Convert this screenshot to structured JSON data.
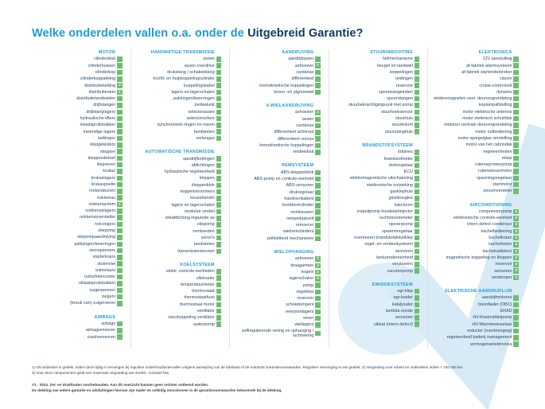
{
  "title": {
    "prefix": "Welke onderdelen vallen o.a. onder de ",
    "highlight": "Uitgebreid Garantie?"
  },
  "colors": {
    "accent_blue": "#1b9cd8",
    "dark_navy": "#14365f",
    "item_text": "#2a4a6b",
    "badge_green": "#6ebe71",
    "watermark_blue": "#d9ecf8"
  },
  "icons": {
    "watermark": "autotrust-checkmark-watermark",
    "badge": "coverage-badge"
  },
  "columns": [
    {
      "sections": [
        {
          "title": "MOTOR",
          "items": [
            {
              "t": "cilinderblok"
            },
            {
              "t": "cilinderbussen"
            },
            {
              "t": "cilinderkop"
            },
            {
              "t": "cilinderkoppakking"
            },
            {
              "t": "distributieketting",
              "b": "3"
            },
            {
              "t": "distributieriem",
              "b": "1"
            },
            {
              "t": "distributietandwielen"
            },
            {
              "t": "drijfstangen"
            },
            {
              "t": "drijfstanglagers"
            },
            {
              "t": "hydraulische lifters"
            },
            {
              "t": "inlaatspruitstukken"
            },
            {
              "t": "inwendige lagers"
            },
            {
              "t": "kettingen"
            },
            {
              "t": "klepgeleiders"
            },
            {
              "t": "kleppen"
            },
            {
              "t": "kleppendeksel"
            },
            {
              "t": "klepveren"
            },
            {
              "t": "krukas"
            },
            {
              "t": "krukaslagers"
            },
            {
              "t": "krukaspoelie"
            },
            {
              "t": "motorsteunen"
            },
            {
              "t": "nokkenas"
            },
            {
              "t": "nokkenasriem",
              "b": "1"
            },
            {
              "t": "nokkenaslagers"
            },
            {
              "t": "nokkenasversteller"
            },
            {
              "t": "nokvolgers"
            },
            {
              "t": "oliepomp"
            },
            {
              "t": "oliepompaandrijving"
            },
            {
              "t": "pakkingen/keerringen"
            },
            {
              "t": "riemspanners"
            },
            {
              "t": "starterkrans"
            },
            {
              "t": "stoterwiel"
            },
            {
              "t": "tuimelaars"
            },
            {
              "t": "turbo/intercooler"
            },
            {
              "t": "uitlaatspruitstukken"
            },
            {
              "t": "zuigerpennen"
            },
            {
              "t": "zuigers"
            },
            {
              "t": "(breuk van) zuigerveren"
            }
          ]
        },
        {
          "title": "AIRBAGS",
          "items": [
            {
              "t": "airbags"
            },
            {
              "t": "airbagsensoren"
            },
            {
              "t": "crashsensoren"
            }
          ]
        }
      ]
    },
    {
      "sections": [
        {
          "title": "HANDMATIGE TRANSMISSIE",
          "items": [
            {
              "t": "assen"
            },
            {
              "t": "assen overdrive"
            },
            {
              "t": "drukstang / schakelstang"
            },
            {
              "t": "hoofd- en hulpkoppelingscilinder"
            },
            {
              "t": "koppelingskabel"
            },
            {
              "t": "lagers en lagerschalen"
            },
            {
              "t": "pakkingen/keerringen"
            },
            {
              "t": "pedaalunit"
            },
            {
              "t": "selectorassen"
            },
            {
              "t": "selectorvorken"
            },
            {
              "t": "synchromesh ringen en naven"
            },
            {
              "t": "tandwielen"
            },
            {
              "t": "verlengas"
            }
          ]
        },
        {
          "title": "AUTOMATISCHE TRANSMISSIE",
          "items": [
            {
              "t": "aandrijfkettingen"
            },
            {
              "t": "afdichtingen"
            },
            {
              "t": "hydraulische regeleenheid"
            },
            {
              "t": "kleppen"
            },
            {
              "t": "kleppenblok"
            },
            {
              "t": "koppelomvormers"
            },
            {
              "t": "keuzehendel"
            },
            {
              "t": "lagers en lagerschalen"
            },
            {
              "t": "modulair ventiel"
            },
            {
              "t": "olieafdichting ingaande as"
            },
            {
              "t": "oliepomp"
            },
            {
              "t": "rembanden"
            },
            {
              "t": "servo's"
            },
            {
              "t": "tandwielen"
            },
            {
              "t": "transmissiesteunen"
            }
          ]
        },
        {
          "title": "KOELSYSTEEM",
          "items": [
            {
              "t": "elektr. controle-eenheden"
            },
            {
              "t": "oliekoeler"
            },
            {
              "t": "temperatuurmeter"
            },
            {
              "t": "thermostaat"
            },
            {
              "t": "thermostaathuis"
            },
            {
              "t": "thermostaat motor"
            },
            {
              "t": "ventilator"
            },
            {
              "t": "viscokoppeling ventilator"
            },
            {
              "t": "waterpomp"
            }
          ]
        }
      ]
    },
    {
      "sections": [
        {
          "title": "AANDRIJVING",
          "items": [
            {
              "t": "aandrijfassen"
            },
            {
              "t": "ashoezen",
              "b": "2"
            },
            {
              "t": "cardanas"
            },
            {
              "t": "differentieel"
            },
            {
              "t": "homokinetische koppelingen"
            },
            {
              "t": "kroon- en pignonwiel"
            }
          ]
        },
        {
          "title": "4-WIELAANDRIJVING",
          "items": [
            {
              "t": "ashoezen",
              "b": "2"
            },
            {
              "t": "assen"
            },
            {
              "t": "cardanas"
            },
            {
              "t": "differentieel achteras"
            },
            {
              "t": "differentieel vooras"
            },
            {
              "t": "homokinetische koppelingen"
            },
            {
              "t": "verdeelbak"
            }
          ]
        },
        {
          "title": "REMSYSTEEM",
          "items": [
            {
              "t": "ABS-kleppenblok"
            },
            {
              "t": "ABS-pomp en controle-eenheid"
            },
            {
              "t": "ABS-sensoren"
            },
            {
              "t": "drukregelaar"
            },
            {
              "t": "handremkabels"
            },
            {
              "t": "hoofdremcilinder"
            },
            {
              "t": "remklauwen"
            },
            {
              "t": "rempedaalunit"
            },
            {
              "t": "remservo"
            },
            {
              "t": "wielremcilinders"
            },
            {
              "t": "zelfstellend mechanisme"
            }
          ]
        },
        {
          "title": "WIELOPHANGING",
          "items": [
            {
              "t": "ashoezen",
              "b": "2"
            },
            {
              "t": "draagarmen",
              "b": "3"
            },
            {
              "t": "kogels",
              "b": "2"
            },
            {
              "t": "lagerschalen",
              "b": "3"
            },
            {
              "t": "pomp"
            },
            {
              "t": "regelklep"
            },
            {
              "t": "reservoir"
            },
            {
              "t": "schokdempers"
            },
            {
              "t": "veerpootlagers"
            },
            {
              "t": "veren"
            },
            {
              "t": "wiellagers"
            },
            {
              "t": "zelfregulerende vering en ophanging / luchtvering"
            }
          ]
        }
      ]
    },
    {
      "sections": [
        {
          "title": "STUURINRICHTING",
          "items": [
            {
              "t": "hefmechanisme"
            },
            {
              "t": "heugel en tandwiel"
            },
            {
              "t": "koppelingen"
            },
            {
              "t": "leidingen"
            },
            {
              "t": "reservoir"
            },
            {
              "t": "spoorstangeinden"
            },
            {
              "t": "spoorstangen"
            },
            {
              "t": "stuurbekrachtigingsunit met pomp"
            },
            {
              "t": "stuurhoeksensor"
            },
            {
              "t": "stuurhuis"
            },
            {
              "t": "stuurkolom"
            },
            {
              "t": "stuurstanghuis"
            }
          ]
        },
        {
          "title": "BRANDSTOFSYSTEEM",
          "items": [
            {
              "t": "bobines"
            },
            {
              "t": "brandstofmeter"
            },
            {
              "t": "drukregelaar"
            },
            {
              "t": "ECU"
            },
            {
              "t": "elektromagnetische uitschakeling"
            },
            {
              "t": "elektronische ontsteking"
            },
            {
              "t": "gasklephuis"
            },
            {
              "t": "gloeibougies"
            },
            {
              "t": "injectoren"
            },
            {
              "t": "inspuitpomp koudstartinjector"
            },
            {
              "t": "luchtstroommeter"
            },
            {
              "t": "opvoerpomp"
            },
            {
              "t": "opwarmregelaar"
            },
            {
              "t": "overtoeren brandstofafsluitklep"
            },
            {
              "t": "regel- en verdeelsysteem"
            },
            {
              "t": "sensoren"
            },
            {
              "t": "tankzendereenheid"
            },
            {
              "t": "verstuivers"
            },
            {
              "t": "vacuümpomp"
            }
          ]
        },
        {
          "title": "EMISSIESYSTEEM",
          "items": [
            {
              "t": "egr-klep"
            },
            {
              "t": "egr-koeler"
            },
            {
              "t": "katalysator"
            },
            {
              "t": "lambda-sonde"
            },
            {
              "t": "sensoren"
            },
            {
              "t": "uitlaat (intern defect)"
            }
          ]
        }
      ]
    },
    {
      "sections": [
        {
          "title": "ELEKTRONICA",
          "items": [
            {
              "t": "12V aansluiting"
            },
            {
              "t": "af-fabriek alarmsysteem"
            },
            {
              "t": "af-fabriek startonderbreker"
            },
            {
              "t": "claxon"
            },
            {
              "t": "cruise-controlunit"
            },
            {
              "t": "dynamo"
            },
            {
              "t": "elektromagneten cent. deurvergrendeling"
            },
            {
              "t": "koplampafstelling"
            },
            {
              "t": "motor elektrische antenne"
            },
            {
              "t": "motor elektrisch schuifdak"
            },
            {
              "t": "motoren centrale deurvergrendeling"
            },
            {
              "t": "motor ruitbediening"
            },
            {
              "t": "motor spiegelglas verstelling"
            },
            {
              "t": "motor van het cabriodak"
            },
            {
              "t": "regeleenheden"
            },
            {
              "t": "relais"
            },
            {
              "t": "ruitensproeierpomp"
            },
            {
              "t": "ruitenwissermotor"
            },
            {
              "t": "spanningsregelaar"
            },
            {
              "t": "startmotor"
            },
            {
              "t": "stroomverdeler"
            }
          ]
        },
        {
          "title": "AIRCONDITIONING",
          "items": [
            {
              "t": "compressorpomp",
              "b": "3"
            },
            {
              "t": "elektronische controle-eenheid",
              "b": "3"
            },
            {
              "t": "intern defect condensor",
              "b": "3"
            },
            {
              "t": "kachelbediening",
              "b": "3"
            },
            {
              "t": "kachelkraan",
              "b": "3"
            },
            {
              "t": "kachelmotor",
              "b": "3"
            },
            {
              "t": "kachelradiateur",
              "b": "3"
            },
            {
              "t": "magnetische koppeling en kleppen",
              "b": "3"
            },
            {
              "t": "reservoir",
              "b": "3"
            },
            {
              "t": "sensoren",
              "b": "3"
            },
            {
              "t": "verdamper",
              "b": "3"
            }
          ]
        },
        {
          "title": "ELEKTRISCHE AANDRIJFLIJN",
          "items": [
            {
              "t": "aandrijfmotoren"
            },
            {
              "t": "boordlader (OBC)"
            },
            {
              "t": "ERAD"
            },
            {
              "t": "HV-Koelmiddelpomp"
            },
            {
              "t": "HV-Warmtewisselaar"
            },
            {
              "t": "reductor (overbrenging)"
            },
            {
              "t": "regeleenheid batterij management"
            },
            {
              "t": "vermogenselektronica"
            }
          ]
        }
      ]
    }
  ],
  "footnotes": {
    "line1": "1) Dit onderdeel is gedekt, indien deze tijdig is vervangen bij reguliere onderhoudsintervallen volgens aanwijzing van de fabrikant of de Autotrust Garantievoorwaarden. Reguliere vervanging is niet gedekt. 2) Vergoeding voor arbeid en onderdelen indien < 100.000 km.",
    "line2": "3) Voor deze componenten geldt een maximale vergoeding van €1000,- inclusief btw."
  },
  "disclaimer": {
    "line1": "V1 - 2024. Zet- en drukfouten voorbehouden. Aan dit overzicht kunnen geen rechten ontleend worden.",
    "line2": "De dekking van iedere garantie en uitsluitingen hiervan  zijn  nader en volledig omschreven in de garantievoorwaarden behorende bij de dekking."
  }
}
